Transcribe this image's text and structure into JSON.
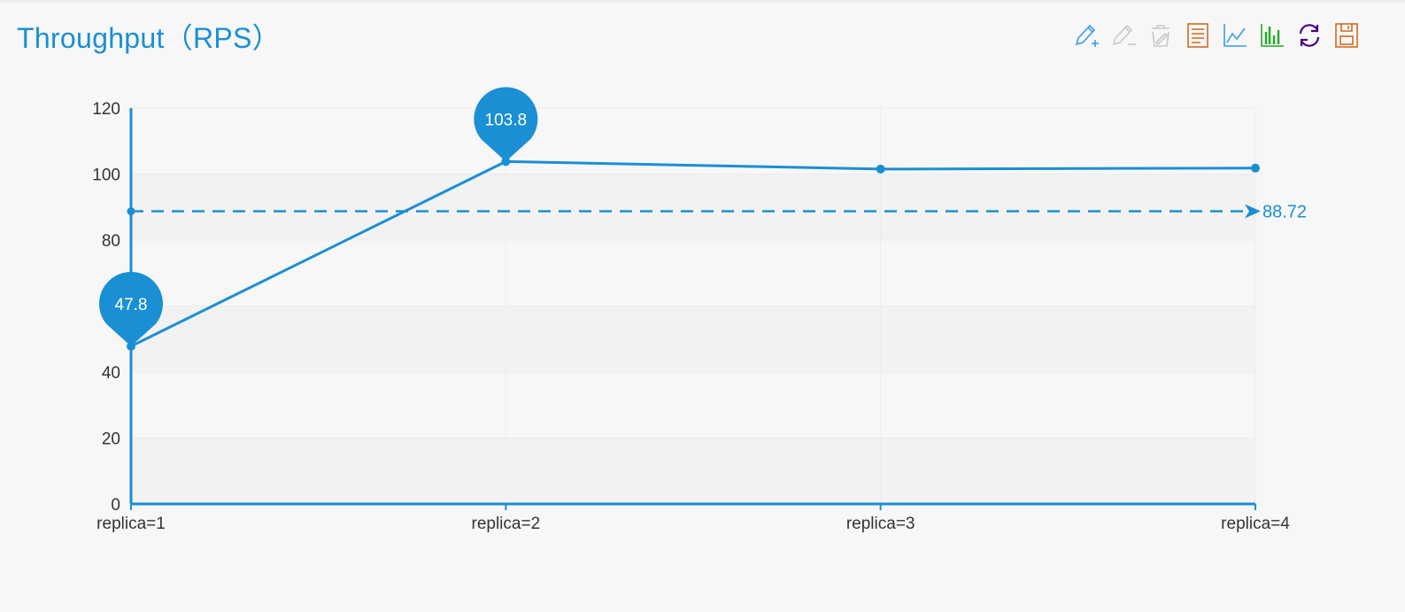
{
  "colors": {
    "accent": "#1a8fd3",
    "toolbox_blue": "#3a9ae8",
    "toolbox_disabled": "#c8c8c8",
    "toolbox_orange": "#d2691e",
    "toolbox_green": "#22aa22",
    "toolbox_purple": "#4b0082"
  },
  "toolbox": [
    {
      "icon": "edit-add-icon"
    },
    {
      "icon": "edit-remove-icon"
    },
    {
      "icon": "clear-icon"
    },
    {
      "icon": "data-view-icon"
    },
    {
      "icon": "line-chart-icon"
    },
    {
      "icon": "bar-chart-icon"
    },
    {
      "icon": "restore-icon"
    },
    {
      "icon": "save-image-icon"
    }
  ],
  "chart_data": {
    "type": "line",
    "title": "Throughput（RPS）",
    "xlabel": "",
    "ylabel": "",
    "categories": [
      "replica=1",
      "replica=2",
      "replica=3",
      "replica=4"
    ],
    "series": [
      {
        "values": [
          47.8,
          103.8,
          101.5,
          101.8
        ]
      }
    ],
    "ylim": [
      0,
      120
    ],
    "yticks": [
      0,
      20,
      40,
      60,
      80,
      100,
      120
    ],
    "mark_points": [
      {
        "label": "47.8",
        "category": "replica=1",
        "value": 47.8
      },
      {
        "label": "103.8",
        "category": "replica=2",
        "value": 103.8
      }
    ],
    "mark_line": {
      "label": "88.72",
      "value": 88.72,
      "style": "dashed"
    },
    "grid": true,
    "legend": "none"
  }
}
